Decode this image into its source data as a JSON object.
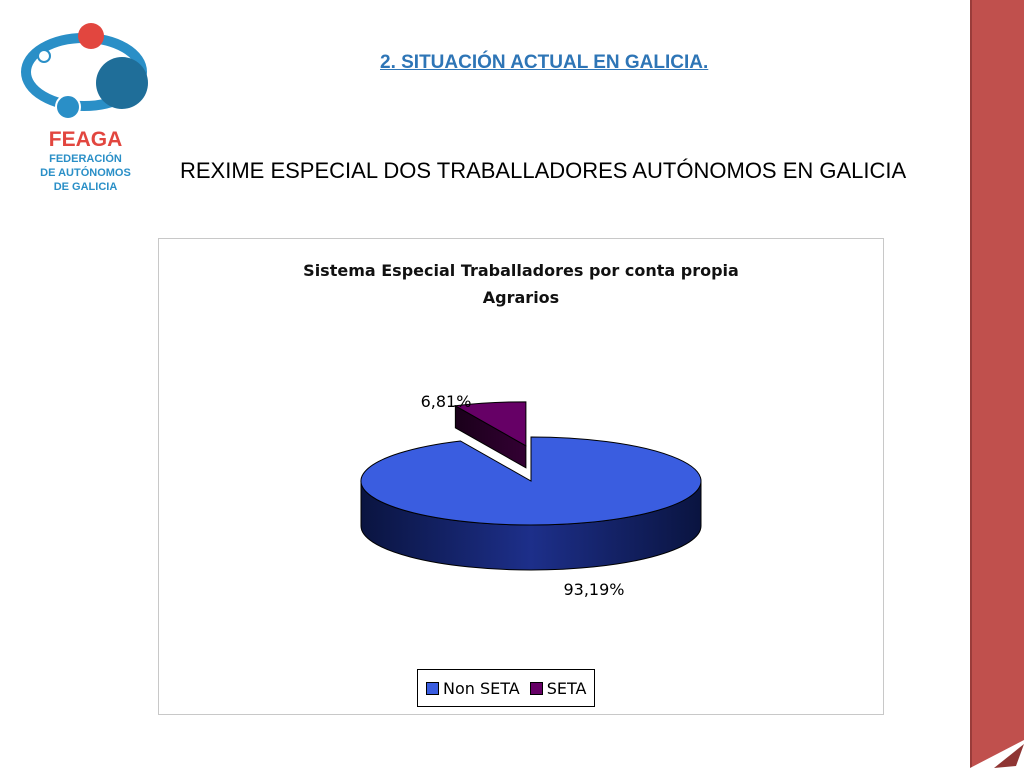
{
  "logo": {
    "brand": "FEAGA",
    "line1": "FEDERACIÓN",
    "line2": "DE AUTÓNOMOS",
    "line3": "DE GALICIA"
  },
  "header": {
    "section_title": "2. SITUACIÓN ACTUAL EN GALICIA.",
    "subtitle": "REXIME ESPECIAL DOS TRABALLADORES AUTÓNOMOS EN GALICIA"
  },
  "colors": {
    "accent": "#c0504d",
    "title_blue": "#2e75b6",
    "logo_red": "#e2463f",
    "logo_blue": "#2a8fc7"
  },
  "chart_data": {
    "type": "pie",
    "title_line1": "Sistema Especial Traballadores por conta propia",
    "title_line2": "Agrarios",
    "legend_position": "bottom",
    "slices": [
      {
        "name": "Non SETA",
        "value": 93.19,
        "label": "93,19%",
        "color": "#3a5de0"
      },
      {
        "name": "SETA",
        "value": 6.81,
        "label": "6,81%",
        "color": "#660066"
      }
    ]
  }
}
